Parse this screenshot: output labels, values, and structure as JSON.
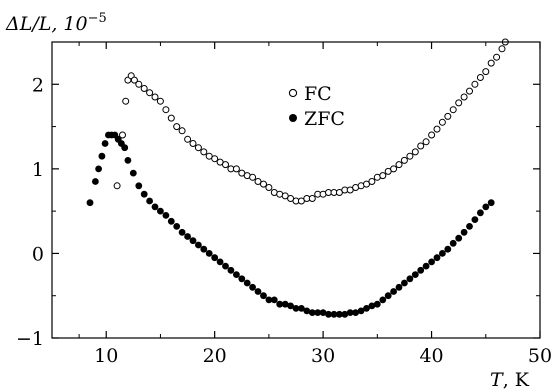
{
  "chart_data": {
    "type": "scatter",
    "ylabel_main": "ΔL/L, 10",
    "ylabel_exp": "−5",
    "xlabel_main": "T",
    "xlabel_unit": ", K",
    "xlim": [
      5,
      50
    ],
    "ylim": [
      -1,
      2.5
    ],
    "xticks": [
      10,
      20,
      30,
      40,
      50
    ],
    "yticks": [
      -1,
      0,
      1,
      2
    ],
    "xtick_labels": [
      "10",
      "20",
      "30",
      "40",
      "50"
    ],
    "ytick_labels": [
      "−1",
      "0",
      "1",
      "2"
    ],
    "grid": false,
    "legend_position": "top-center",
    "series": [
      {
        "name": "FC",
        "marker": "open-circle",
        "x": [
          11.0,
          11.5,
          11.8,
          12.0,
          12.3,
          12.6,
          13.0,
          13.5,
          14.0,
          14.5,
          15.0,
          15.5,
          16.0,
          16.5,
          17.0,
          17.5,
          18.0,
          18.5,
          19.0,
          19.5,
          20.0,
          20.5,
          21.0,
          21.5,
          22.0,
          22.5,
          23.0,
          23.5,
          24.0,
          24.5,
          25.0,
          25.5,
          26.0,
          26.5,
          27.0,
          27.5,
          28.0,
          28.5,
          29.0,
          29.5,
          30.0,
          30.5,
          31.0,
          31.5,
          32.0,
          32.5,
          33.0,
          33.5,
          34.0,
          34.5,
          35.0,
          35.5,
          36.0,
          36.5,
          37.0,
          37.5,
          38.0,
          38.5,
          39.0,
          39.5,
          40.0,
          40.5,
          41.0,
          41.5,
          42.0,
          42.5,
          43.0,
          43.5,
          44.0,
          44.5,
          45.0,
          45.5,
          46.0,
          46.5,
          46.8
        ],
        "y": [
          0.8,
          1.4,
          1.8,
          2.05,
          2.1,
          2.05,
          2.0,
          1.95,
          1.9,
          1.85,
          1.8,
          1.7,
          1.6,
          1.5,
          1.45,
          1.35,
          1.3,
          1.25,
          1.2,
          1.15,
          1.12,
          1.08,
          1.05,
          1.0,
          1.0,
          0.95,
          0.92,
          0.9,
          0.85,
          0.82,
          0.78,
          0.72,
          0.7,
          0.68,
          0.65,
          0.62,
          0.62,
          0.65,
          0.65,
          0.7,
          0.7,
          0.72,
          0.72,
          0.72,
          0.75,
          0.75,
          0.78,
          0.8,
          0.82,
          0.85,
          0.9,
          0.92,
          0.97,
          1.0,
          1.05,
          1.1,
          1.15,
          1.2,
          1.27,
          1.32,
          1.4,
          1.47,
          1.55,
          1.62,
          1.7,
          1.78,
          1.85,
          1.92,
          2.0,
          2.08,
          2.15,
          2.25,
          2.32,
          2.42,
          2.5
        ]
      },
      {
        "name": "ZFC",
        "marker": "filled-circle",
        "x": [
          8.5,
          9.0,
          9.3,
          9.6,
          9.9,
          10.2,
          10.5,
          10.8,
          11.1,
          11.4,
          11.7,
          12.0,
          12.5,
          13.0,
          13.5,
          14.0,
          14.5,
          15.0,
          15.5,
          16.0,
          16.5,
          17.0,
          17.5,
          18.0,
          18.5,
          19.0,
          19.5,
          20.0,
          20.5,
          21.0,
          21.5,
          22.0,
          22.5,
          23.0,
          23.5,
          24.0,
          24.5,
          25.0,
          25.5,
          26.0,
          26.5,
          27.0,
          27.5,
          28.0,
          28.5,
          29.0,
          29.5,
          30.0,
          30.5,
          31.0,
          31.5,
          32.0,
          32.5,
          33.0,
          33.5,
          34.0,
          34.5,
          35.0,
          35.5,
          36.0,
          36.5,
          37.0,
          37.5,
          38.0,
          38.5,
          39.0,
          39.5,
          40.0,
          40.5,
          41.0,
          41.5,
          42.0,
          42.5,
          43.0,
          43.5,
          44.0,
          44.5,
          45.0,
          45.5
        ],
        "y": [
          0.6,
          0.85,
          1.0,
          1.15,
          1.3,
          1.4,
          1.4,
          1.4,
          1.35,
          1.3,
          1.25,
          1.1,
          0.95,
          0.8,
          0.7,
          0.62,
          0.55,
          0.5,
          0.45,
          0.38,
          0.32,
          0.25,
          0.2,
          0.15,
          0.1,
          0.05,
          0.0,
          -0.05,
          -0.1,
          -0.15,
          -0.2,
          -0.25,
          -0.3,
          -0.35,
          -0.4,
          -0.45,
          -0.5,
          -0.55,
          -0.55,
          -0.6,
          -0.6,
          -0.62,
          -0.65,
          -0.65,
          -0.68,
          -0.7,
          -0.7,
          -0.7,
          -0.72,
          -0.72,
          -0.72,
          -0.72,
          -0.7,
          -0.7,
          -0.68,
          -0.65,
          -0.62,
          -0.6,
          -0.55,
          -0.5,
          -0.45,
          -0.4,
          -0.35,
          -0.3,
          -0.25,
          -0.2,
          -0.15,
          -0.1,
          -0.05,
          0.0,
          0.05,
          0.12,
          0.18,
          0.25,
          0.32,
          0.4,
          0.48,
          0.55,
          0.6
        ]
      }
    ]
  }
}
